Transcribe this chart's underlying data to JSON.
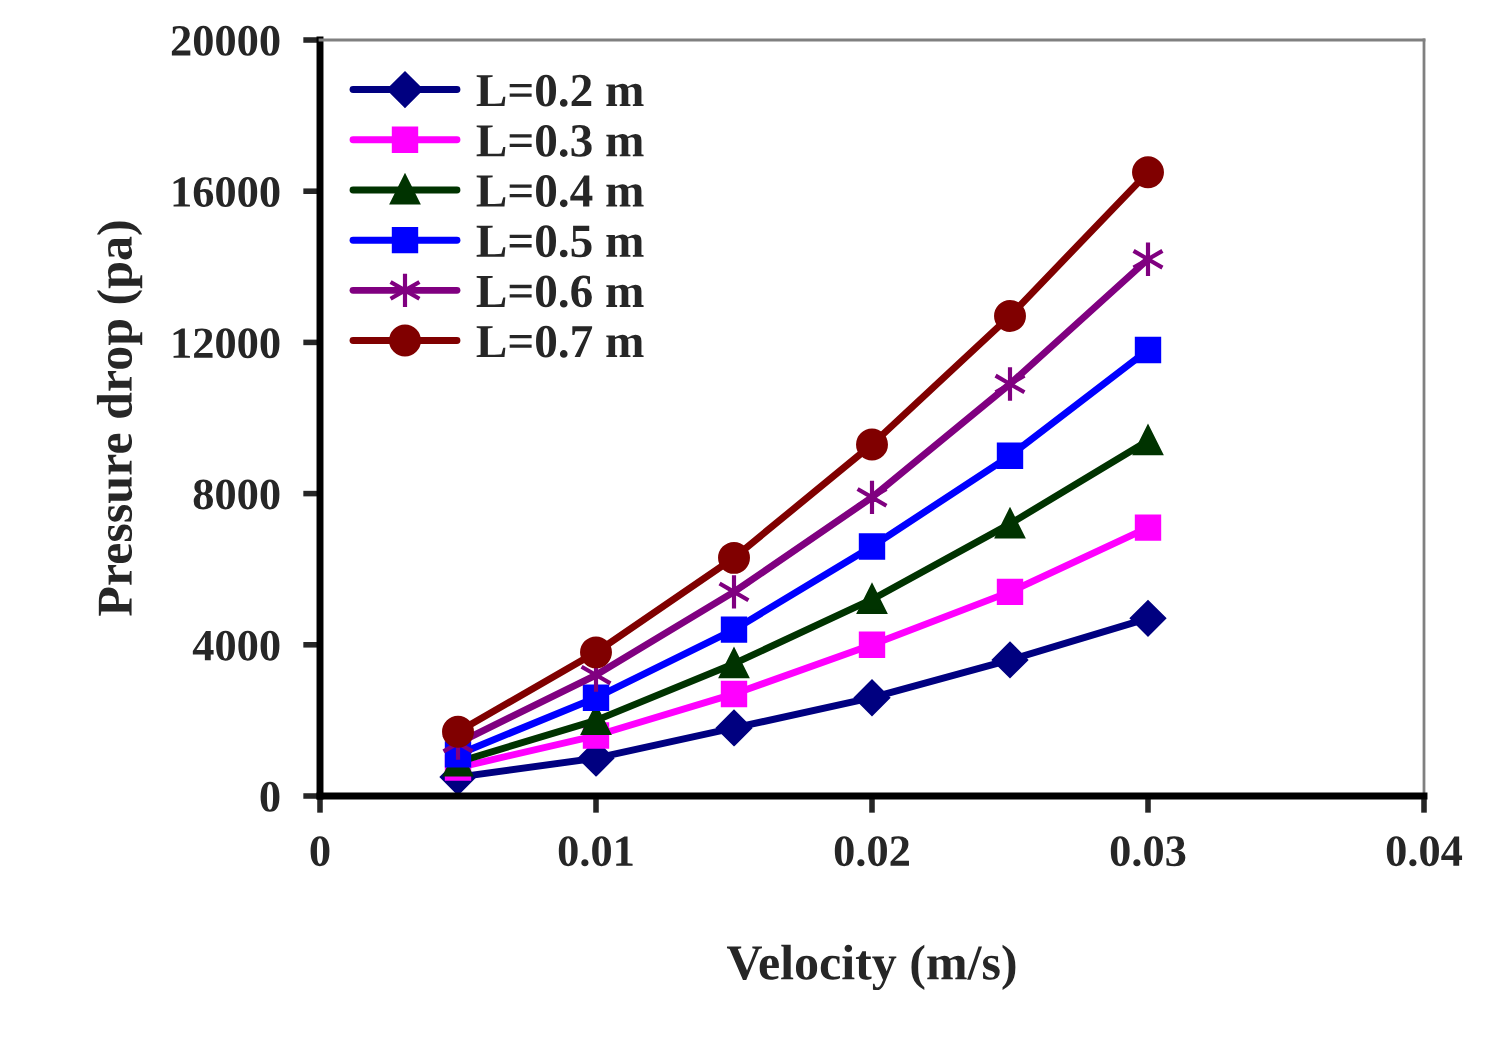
{
  "chart_data": {
    "type": "line",
    "xlabel": "Velocity (m/s)",
    "ylabel": "Pressure drop (pa)",
    "x": [
      0.005,
      0.01,
      0.015,
      0.02,
      0.025,
      0.03
    ],
    "series": [
      {
        "name": "L=0.2 m",
        "color": "#000080",
        "marker": "diamond",
        "values": [
          500,
          1000,
          1800,
          2600,
          3600,
          4700
        ]
      },
      {
        "name": "L=0.3 m",
        "color": "#ff00ff",
        "marker": "square",
        "values": [
          750,
          1600,
          2700,
          4000,
          5400,
          7100
        ]
      },
      {
        "name": "L=0.4 m",
        "color": "#003300",
        "marker": "triangle",
        "values": [
          900,
          2000,
          3500,
          5200,
          7200,
          9400
        ]
      },
      {
        "name": "L=0.5 m",
        "color": "#0000ff",
        "marker": "square",
        "values": [
          1100,
          2600,
          4400,
          6600,
          9000,
          11800
        ]
      },
      {
        "name": "L=0.6 m",
        "color": "#800080",
        "marker": "cross",
        "values": [
          1400,
          3200,
          5400,
          7900,
          10900,
          14200
        ]
      },
      {
        "name": "L=0.7 m",
        "color": "#800000",
        "marker": "circle",
        "values": [
          1700,
          3800,
          6300,
          9300,
          12700,
          16500
        ]
      }
    ],
    "xlim": [
      0,
      0.04
    ],
    "xticks": [
      {
        "value": 0,
        "label": "0"
      },
      0.01,
      0.02,
      0.03,
      0.04
    ],
    "ylim": [
      0,
      20000
    ],
    "yticks": [
      0,
      4000,
      8000,
      12000,
      16000,
      20000
    ],
    "grid": false,
    "legend": "top left",
    "line_style": "solid"
  }
}
